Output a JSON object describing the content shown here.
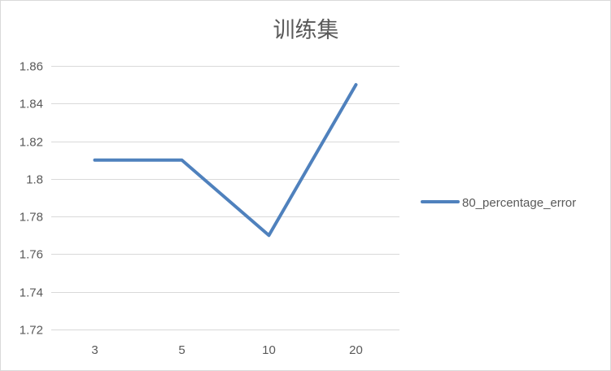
{
  "chart_data": {
    "type": "line",
    "title": "训练集",
    "categories": [
      "3",
      "5",
      "10",
      "20"
    ],
    "series": [
      {
        "name": "80_percentage_error",
        "values": [
          1.81,
          1.81,
          1.77,
          1.85
        ]
      }
    ],
    "ylim": [
      1.72,
      1.86
    ],
    "yticks": [
      1.72,
      1.74,
      1.76,
      1.78,
      1.8,
      1.82,
      1.84,
      1.86
    ],
    "ytick_labels": [
      "1.72",
      "1.74",
      "1.76",
      "1.78",
      "1.8",
      "1.82",
      "1.84",
      "1.86"
    ],
    "xlabel": "",
    "ylabel": "",
    "grid": true,
    "legend_position": "right",
    "colors": {
      "series": "#4f81bd",
      "grid": "#d9d9d9",
      "text": "#595959",
      "border": "#d9d9d9"
    }
  }
}
